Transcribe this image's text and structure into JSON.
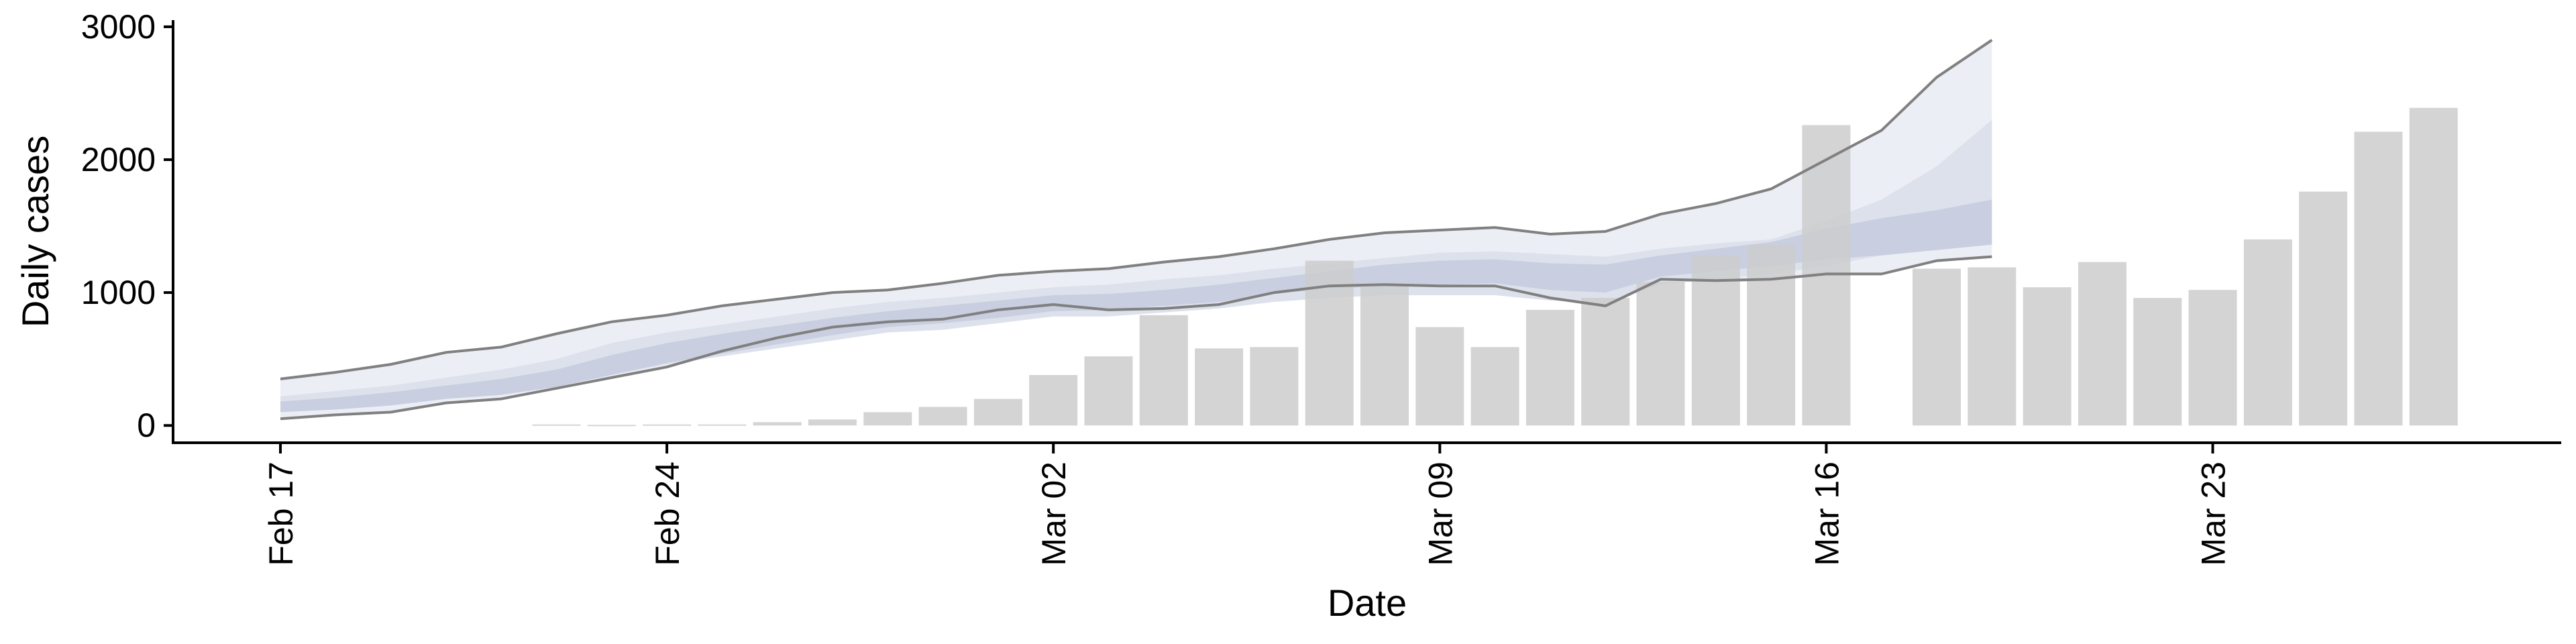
{
  "chart_data": {
    "type": "bar",
    "xlabel": "Date",
    "ylabel": "Daily cases",
    "ylim": [
      -130,
      3050
    ],
    "yticks": [
      0,
      1000,
      2000,
      3000
    ],
    "xticks": [
      {
        "date": "2020-02-17",
        "label": "Feb 17"
      },
      {
        "date": "2020-02-24",
        "label": "Feb 24"
      },
      {
        "date": "2020-03-02",
        "label": "Mar 02"
      },
      {
        "date": "2020-03-09",
        "label": "Mar 09"
      },
      {
        "date": "2020-03-16",
        "label": "Mar 16"
      },
      {
        "date": "2020-03-23",
        "label": "Mar 23"
      }
    ],
    "bars": {
      "dates": [
        "2020-02-22",
        "2020-02-23",
        "2020-02-24",
        "2020-02-25",
        "2020-02-26",
        "2020-02-27",
        "2020-02-28",
        "2020-02-29",
        "2020-03-01",
        "2020-03-02",
        "2020-03-03",
        "2020-03-04",
        "2020-03-05",
        "2020-03-06",
        "2020-03-07",
        "2020-03-08",
        "2020-03-09",
        "2020-03-10",
        "2020-03-11",
        "2020-03-12",
        "2020-03-13",
        "2020-03-14",
        "2020-03-15",
        "2020-03-16",
        "2020-03-17",
        "2020-03-18",
        "2020-03-19",
        "2020-03-20",
        "2020-03-21",
        "2020-03-22",
        "2020-03-23",
        "2020-03-24",
        "2020-03-25",
        "2020-03-26",
        "2020-03-27",
        "2020-03-28"
      ],
      "values": [
        8,
        5,
        8,
        8,
        25,
        45,
        100,
        140,
        200,
        380,
        520,
        830,
        580,
        590,
        1240,
        1070,
        740,
        590,
        870,
        960,
        1080,
        1280,
        1360,
        2260,
        0,
        1180,
        1190,
        1040,
        1230,
        960,
        1020,
        1400,
        1760,
        2210,
        2390,
        0
      ],
      "color": "#cccccc"
    },
    "estimate": {
      "dates": [
        "2020-02-17",
        "2020-02-18",
        "2020-02-19",
        "2020-02-20",
        "2020-02-21",
        "2020-02-22",
        "2020-02-23",
        "2020-02-24",
        "2020-02-25",
        "2020-02-26",
        "2020-02-27",
        "2020-02-28",
        "2020-02-29",
        "2020-03-01",
        "2020-03-02",
        "2020-03-03",
        "2020-03-04",
        "2020-03-05",
        "2020-03-06",
        "2020-03-07",
        "2020-03-08",
        "2020-03-09",
        "2020-03-10",
        "2020-03-11",
        "2020-03-12",
        "2020-03-13",
        "2020-03-14",
        "2020-03-15",
        "2020-03-16",
        "2020-03-17",
        "2020-03-18",
        "2020-03-19"
      ],
      "outer_upper": [
        350,
        400,
        460,
        550,
        590,
        690,
        780,
        830,
        900,
        950,
        1000,
        1020,
        1070,
        1130,
        1160,
        1180,
        1230,
        1270,
        1330,
        1400,
        1450,
        1470,
        1490,
        1440,
        1460,
        1590,
        1670,
        1780,
        2000,
        2220,
        2620,
        2900
      ],
      "outer_lower": [
        50,
        80,
        100,
        170,
        200,
        280,
        360,
        440,
        560,
        660,
        740,
        780,
        800,
        870,
        910,
        870,
        880,
        910,
        1000,
        1050,
        1060,
        1050,
        1050,
        960,
        900,
        1100,
        1090,
        1100,
        1140,
        1140,
        1240,
        1270
      ],
      "inner_upper": [
        220,
        260,
        300,
        360,
        420,
        500,
        620,
        700,
        760,
        820,
        880,
        930,
        960,
        1000,
        1040,
        1060,
        1100,
        1130,
        1180,
        1220,
        1260,
        1300,
        1310,
        1290,
        1270,
        1330,
        1370,
        1400,
        1540,
        1700,
        1950,
        2300
      ],
      "inner_lower": [
        110,
        140,
        160,
        210,
        240,
        300,
        380,
        460,
        520,
        580,
        640,
        700,
        720,
        770,
        820,
        820,
        850,
        880,
        930,
        960,
        980,
        980,
        980,
        940,
        920,
        1060,
        1100,
        1140,
        1200,
        1280,
        1420,
        1560
      ],
      "core_upper": [
        180,
        210,
        250,
        300,
        350,
        420,
        530,
        620,
        690,
        750,
        810,
        860,
        900,
        940,
        980,
        990,
        1020,
        1060,
        1110,
        1160,
        1210,
        1240,
        1250,
        1220,
        1210,
        1280,
        1330,
        1380,
        1480,
        1560,
        1620,
        1700
      ],
      "core_lower": [
        100,
        120,
        150,
        200,
        230,
        290,
        380,
        470,
        540,
        610,
        680,
        740,
        770,
        810,
        860,
        870,
        900,
        930,
        990,
        1030,
        1050,
        1060,
        1070,
        1020,
        1000,
        1120,
        1160,
        1200,
        1250,
        1280,
        1320,
        1360
      ],
      "outer_color": "#eceef5",
      "inner_color": "#dde1ec",
      "core_color": "#c9cfe0",
      "line_color": "#808080"
    }
  }
}
